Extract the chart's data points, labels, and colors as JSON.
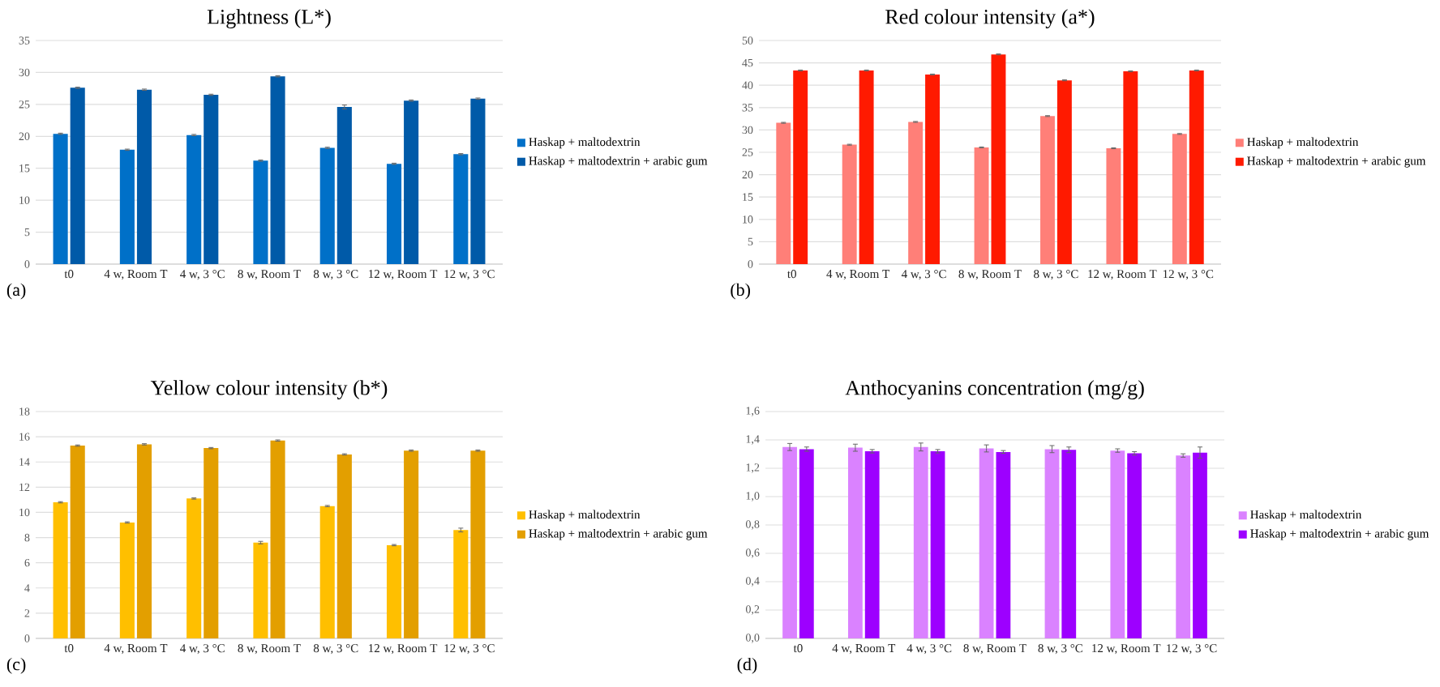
{
  "chart_data": [
    {
      "type": "bar",
      "title": "Lightness (L*)",
      "categories": [
        "t0",
        "4 w, Room T",
        "4 w, 3 °C",
        "8 w, Room T",
        "8 w, 3 °C",
        "12 w, Room T",
        "12 w, 3 °C"
      ],
      "ylim": [
        0,
        35
      ],
      "yticks": [
        0,
        5,
        10,
        15,
        20,
        25,
        30,
        35
      ],
      "grid": "y",
      "legend": "right",
      "annotations": [
        "(a)"
      ],
      "series": [
        {
          "name": "Haskap + maltodextrin",
          "color": "#0070c8",
          "values": [
            20.4,
            17.9,
            20.2,
            16.2,
            18.2,
            15.7,
            17.2
          ],
          "errors": [
            0.1,
            0.1,
            0.1,
            0.1,
            0.1,
            0.1,
            0.1
          ]
        },
        {
          "name": "Haskap + maltodextrin + arabic gum",
          "color": "#005aa8",
          "values": [
            27.6,
            27.3,
            26.5,
            29.4,
            24.6,
            25.6,
            25.9
          ],
          "errors": [
            0.1,
            0.1,
            0.1,
            0.1,
            0.3,
            0.1,
            0.1
          ]
        }
      ]
    },
    {
      "type": "bar",
      "title": "Red colour intensity (a*)",
      "categories": [
        "t0",
        "4 w, Room T",
        "4 w, 3 °C",
        "8 w, Room T",
        "8 w, 3 °C",
        "12 w, Room T",
        "12 w, 3 °C"
      ],
      "ylim": [
        0,
        50
      ],
      "yticks": [
        0,
        5,
        10,
        15,
        20,
        25,
        30,
        35,
        40,
        45,
        50
      ],
      "grid": "y",
      "legend": "right",
      "annotations": [
        "(b)"
      ],
      "series": [
        {
          "name": "Haskap + maltodextrin",
          "color": "#ff7f78",
          "values": [
            31.6,
            26.7,
            31.8,
            26.1,
            33.1,
            25.9,
            29.1
          ],
          "errors": [
            0.1,
            0.1,
            0.1,
            0.1,
            0.1,
            0.1,
            0.1
          ]
        },
        {
          "name": "Haskap + maltodextrin + arabic gum",
          "color": "#ff1a00",
          "values": [
            43.3,
            43.3,
            42.4,
            46.9,
            41.1,
            43.1,
            43.3
          ],
          "errors": [
            0.1,
            0.1,
            0.1,
            0.1,
            0.1,
            0.1,
            0.1
          ]
        }
      ]
    },
    {
      "type": "bar",
      "title": "Yellow colour intensity (b*)",
      "categories": [
        "t0",
        "4 w, Room T",
        "4 w, 3 °C",
        "8 w, Room T",
        "8 w, 3 °C",
        "12 w, Room T",
        "12 w, 3 °C"
      ],
      "ylim": [
        0,
        18
      ],
      "yticks": [
        0,
        2,
        4,
        6,
        8,
        10,
        12,
        14,
        16,
        18
      ],
      "grid": "y",
      "legend": "right",
      "annotations": [
        "(c)"
      ],
      "series": [
        {
          "name": "Haskap + maltodextrin",
          "color": "#ffbf00",
          "values": [
            10.8,
            9.2,
            11.1,
            7.6,
            10.5,
            7.4,
            8.6
          ],
          "errors": [
            0.05,
            0.05,
            0.05,
            0.1,
            0.05,
            0.05,
            0.15
          ]
        },
        {
          "name": "Haskap + maltodextrin + arabic gum",
          "color": "#e39f00",
          "values": [
            15.3,
            15.4,
            15.1,
            15.7,
            14.6,
            14.9,
            14.9
          ],
          "errors": [
            0.05,
            0.05,
            0.05,
            0.05,
            0.05,
            0.05,
            0.05
          ]
        }
      ]
    },
    {
      "type": "bar",
      "title": "Anthocyanins concentration (mg/g)",
      "categories": [
        "t0",
        "4 w, Room T",
        "4 w, 3 °C",
        "8 w, Room T",
        "8 w, 3 °C",
        "12 w, Room T",
        "12 w, 3 °C"
      ],
      "ylim": [
        0,
        1.6
      ],
      "yticks": [
        {
          "value": 0,
          "label": "0,0"
        },
        {
          "value": 0.2,
          "label": "0,2"
        },
        {
          "value": 0.4,
          "label": "0,4"
        },
        {
          "value": 0.6,
          "label": "0,6"
        },
        {
          "value": 0.8,
          "label": "0,8"
        },
        {
          "value": 1.0,
          "label": "1,0"
        },
        {
          "value": 1.2,
          "label": "1,2"
        },
        {
          "value": 1.4,
          "label": "1,4"
        },
        {
          "value": 1.6,
          "label": "1,6"
        }
      ],
      "grid": "y",
      "legend": "right",
      "annotations": [
        "(d)"
      ],
      "series": [
        {
          "name": "Haskap + maltodextrin",
          "color": "#da82ff",
          "values": [
            1.35,
            1.345,
            1.35,
            1.34,
            1.335,
            1.325,
            1.29
          ],
          "errors": [
            0.025,
            0.025,
            0.028,
            0.025,
            0.025,
            0.012,
            0.012
          ]
        },
        {
          "name": "Haskap + maltodextrin + arabic gum",
          "color": "#9d00ff",
          "values": [
            1.335,
            1.32,
            1.32,
            1.315,
            1.33,
            1.305,
            1.31
          ],
          "errors": [
            0.015,
            0.012,
            0.012,
            0.01,
            0.02,
            0.012,
            0.04
          ]
        }
      ]
    }
  ]
}
